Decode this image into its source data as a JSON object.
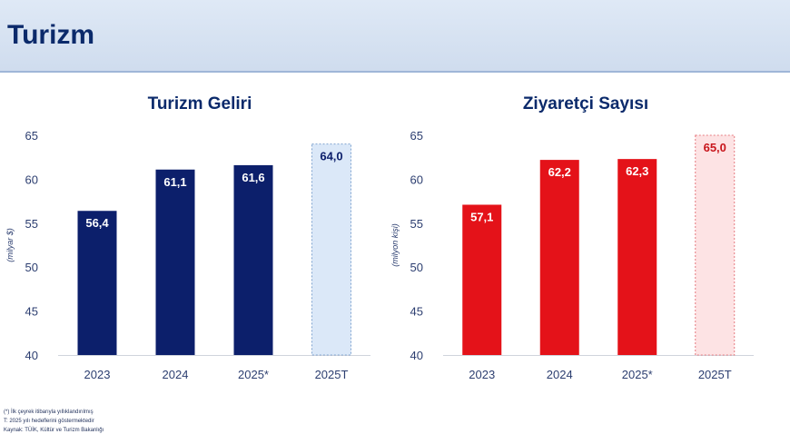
{
  "header": {
    "title": "Turizm"
  },
  "chart_data": [
    {
      "type": "bar",
      "title": "Turizm Geliri",
      "ylabel": "(milyar $)",
      "xlabel": "",
      "categories": [
        "2023",
        "2024",
        "2025*",
        "2025T"
      ],
      "values": [
        56.4,
        61.1,
        61.6,
        64.0
      ],
      "value_labels": [
        "56,4",
        "61,1",
        "61,6",
        "64,0"
      ],
      "yticks": [
        40,
        45,
        50,
        55,
        60,
        65
      ],
      "ylim": [
        40,
        65
      ],
      "grid": false,
      "color": "#0c1f6b",
      "target_fill": "#dbe8f8",
      "target_stroke": "#7fa3cf",
      "label_color": "#ffffff",
      "target_label_color": "#0c1f6b"
    },
    {
      "type": "bar",
      "title": "Ziyaretçi Sayısı",
      "ylabel": "(milyon kişi)",
      "xlabel": "",
      "categories": [
        "2023",
        "2024",
        "2025*",
        "2025T"
      ],
      "values": [
        57.1,
        62.2,
        62.3,
        65.0
      ],
      "value_labels": [
        "57,1",
        "62,2",
        "62,3",
        "65,0"
      ],
      "yticks": [
        40,
        45,
        50,
        55,
        60,
        65
      ],
      "ylim": [
        40,
        65
      ],
      "grid": false,
      "color": "#e41219",
      "target_fill": "#fde3e4",
      "target_stroke": "#e67b80",
      "label_color": "#ffffff",
      "target_label_color": "#c8151b"
    }
  ],
  "notes": [
    "(*) İlk çeyrek itibarıyla yıllıklandırılmış",
    "T: 2025 yılı hedeflerini göstermektedir",
    "Kaynak: TÜİK, Kültür ve Turizm Bakanlığı"
  ]
}
